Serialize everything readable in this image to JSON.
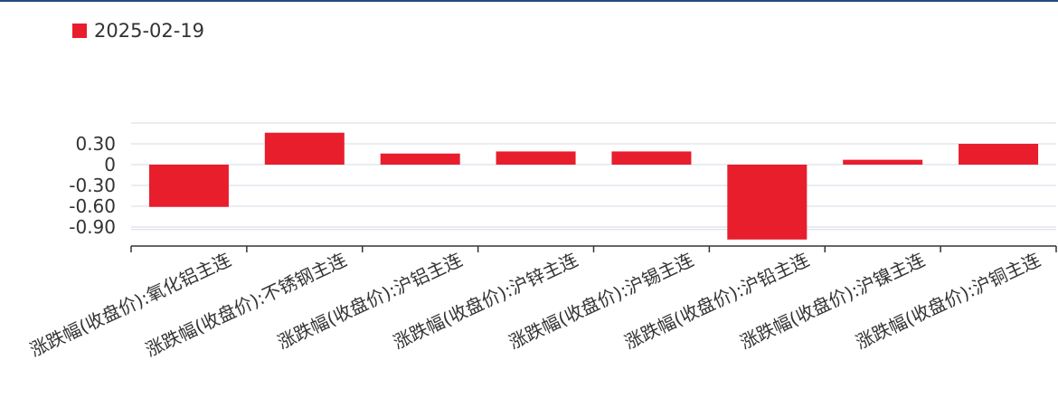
{
  "colors": {
    "bar": "#e81e2d",
    "grid": "#d5d9e4",
    "axis": "#333333",
    "top_rule": "#1f4e79"
  },
  "legend": {
    "label": "2025-02-19",
    "swatch_color": "#e81e2d"
  },
  "chart_data": {
    "type": "bar",
    "categories": [
      "涨跌幅(收盘价):氧化铝主连",
      "涨跌幅(收盘价):不锈钢主连",
      "涨跌幅(收盘价):沪铝主连",
      "涨跌幅(收盘价):沪锌主连",
      "涨跌幅(收盘价):沪锡主连",
      "涨跌幅(收盘价):沪铅主连",
      "涨跌幅(收盘价):沪镍主连",
      "涨跌幅(收盘价):沪铜主连"
    ],
    "series": [
      {
        "name": "2025-02-19",
        "values": [
          -0.61,
          0.46,
          0.16,
          0.19,
          0.19,
          -1.08,
          0.07,
          0.3
        ]
      }
    ],
    "yticks": [
      0.3,
      0,
      -0.3,
      -0.6,
      -0.9
    ],
    "ytick_labels": [
      "0.30",
      "0",
      "-0.30",
      "-0.60",
      "-0.90"
    ],
    "ylim": [
      -1.08,
      0.58
    ],
    "grid": true,
    "legend_position": "top-left"
  }
}
